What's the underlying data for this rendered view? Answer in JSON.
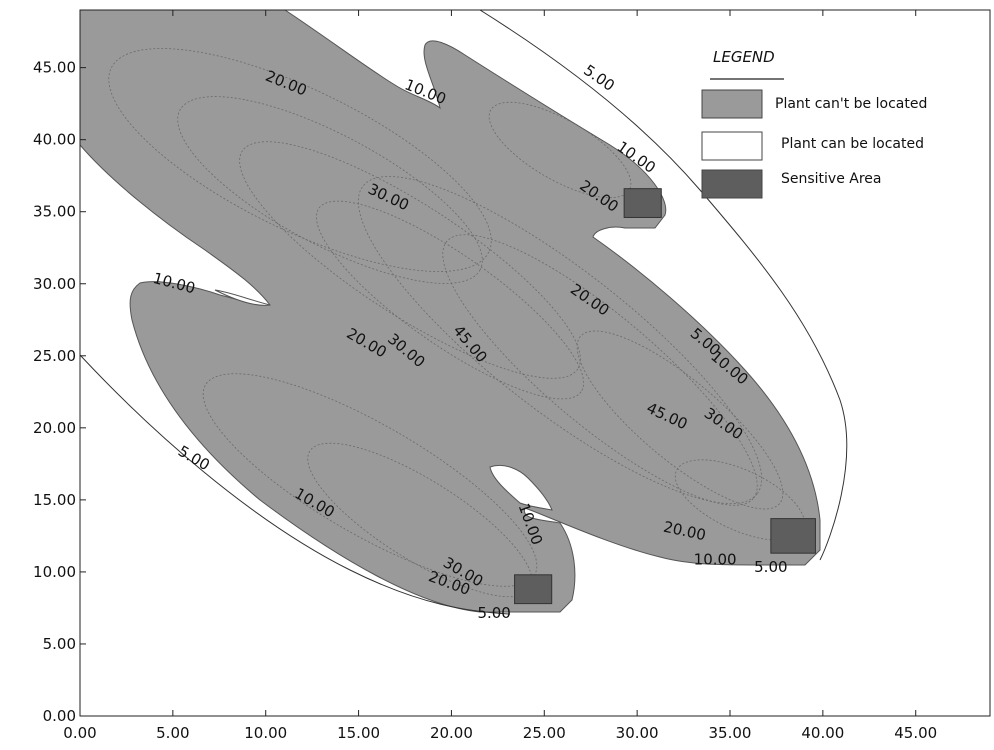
{
  "chart_data": {
    "type": "contour",
    "title": "",
    "xlabel": "",
    "ylabel": "",
    "xlim": [
      0,
      49
    ],
    "ylim": [
      0,
      49
    ],
    "x_ticks": [
      0,
      5,
      10,
      15,
      20,
      25,
      30,
      35,
      40,
      45
    ],
    "y_ticks": [
      0,
      5,
      10,
      15,
      20,
      25,
      30,
      35,
      40,
      45
    ],
    "x_tick_labels": [
      "0.00",
      "5.00",
      "10.00",
      "15.00",
      "20.00",
      "25.00",
      "30.00",
      "35.00",
      "40.00",
      "45.00"
    ],
    "y_tick_labels": [
      "0.00",
      "5.00",
      "10.00",
      "15.00",
      "20.00",
      "25.00",
      "30.00",
      "35.00",
      "40.00",
      "45.00"
    ],
    "contour_levels": [
      5,
      10,
      20,
      30,
      45
    ],
    "legend": {
      "title": "LEGEND",
      "position": "top-right",
      "entries": [
        {
          "label": "Plant can't be located",
          "color": "#9a9a9a"
        },
        {
          "label": "Plant can be located",
          "color": "#ffffff"
        },
        {
          "label": "Sensitive Area",
          "color": "#5e5e5e"
        }
      ]
    },
    "sensitive_areas": [
      {
        "x": [
          29.3,
          31.3
        ],
        "y": [
          34.6,
          36.6
        ]
      },
      {
        "x": [
          37.2,
          39.6
        ],
        "y": [
          11.3,
          13.7
        ]
      },
      {
        "x": [
          23.4,
          25.4
        ],
        "y": [
          7.8,
          9.8
        ]
      }
    ],
    "contour_labels": [
      {
        "text": "20.00",
        "x": 11.0,
        "y": 43.6,
        "rotation": 22
      },
      {
        "text": "10.00",
        "x": 18.5,
        "y": 43.0,
        "rotation": 22
      },
      {
        "text": "5.00",
        "x": 27.8,
        "y": 44.0,
        "rotation": 35
      },
      {
        "text": "10.00",
        "x": 29.8,
        "y": 38.5,
        "rotation": 35
      },
      {
        "text": "20.00",
        "x": 27.8,
        "y": 35.8,
        "rotation": 35
      },
      {
        "text": "30.00",
        "x": 16.5,
        "y": 35.7,
        "rotation": 25
      },
      {
        "text": "20.00",
        "x": 27.3,
        "y": 28.6,
        "rotation": 35
      },
      {
        "text": "5.00",
        "x": 33.5,
        "y": 25.7,
        "rotation": 40
      },
      {
        "text": "10.00",
        "x": 34.8,
        "y": 23.9,
        "rotation": 40
      },
      {
        "text": "45.00",
        "x": 20.8,
        "y": 25.6,
        "rotation": 50
      },
      {
        "text": "30.00",
        "x": 17.4,
        "y": 25.1,
        "rotation": 40
      },
      {
        "text": "20.00",
        "x": 15.3,
        "y": 25.6,
        "rotation": 30
      },
      {
        "text": "10.00",
        "x": 5.0,
        "y": 29.7,
        "rotation": 15
      },
      {
        "text": "45.00",
        "x": 31.5,
        "y": 20.5,
        "rotation": 25
      },
      {
        "text": "30.00",
        "x": 34.5,
        "y": 20.0,
        "rotation": 35
      },
      {
        "text": "5.00",
        "x": 6.0,
        "y": 17.6,
        "rotation": 30
      },
      {
        "text": "10.00",
        "x": 12.5,
        "y": 14.5,
        "rotation": 30
      },
      {
        "text": "10.00",
        "x": 24.0,
        "y": 13.2,
        "rotation": 70
      },
      {
        "text": "20.00",
        "x": 32.5,
        "y": 12.5,
        "rotation": 12
      },
      {
        "text": "10.00",
        "x": 34.2,
        "y": 10.5,
        "rotation": 0
      },
      {
        "text": "5.00",
        "x": 37.2,
        "y": 10.0,
        "rotation": 0
      },
      {
        "text": "30.00",
        "x": 20.5,
        "y": 9.7,
        "rotation": 30
      },
      {
        "text": "20.00",
        "x": 19.8,
        "y": 8.9,
        "rotation": 20
      },
      {
        "text": "5.00",
        "x": 22.3,
        "y": 6.8,
        "rotation": 0
      }
    ]
  }
}
